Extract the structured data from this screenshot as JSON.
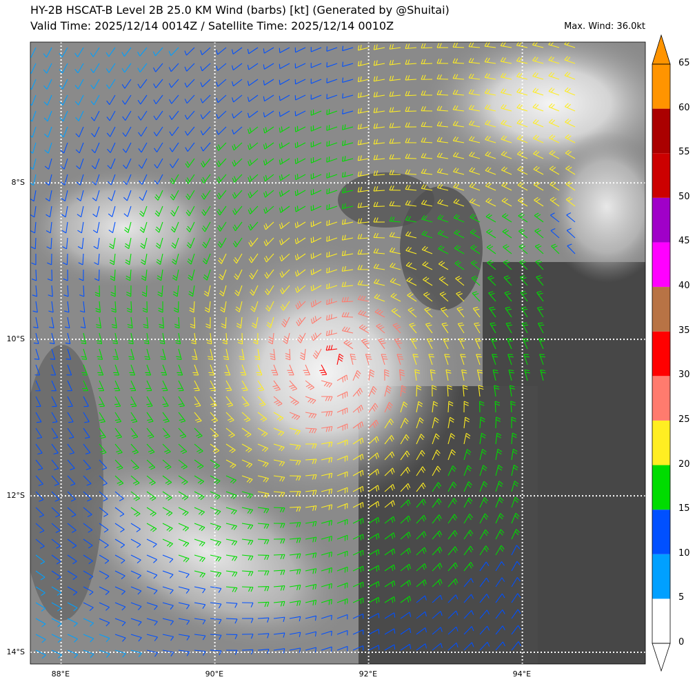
{
  "header": {
    "title_line1": "HY-2B HSCAT-B Level 2B 25.0 KM Wind (barbs) [kt] (Generated by @Shuitai)",
    "title_line2": "Valid Time: 2025/12/14 0014Z / Satellite Time: 2025/12/14 0010Z",
    "max_wind": "Max. Wind: 36.0kt"
  },
  "map": {
    "lon_range": [
      87.6,
      95.6
    ],
    "lat_range": [
      -14.15,
      -6.2
    ],
    "lon_ticks": [
      88,
      90,
      92,
      94
    ],
    "lon_labels": [
      "88°E",
      "90°E",
      "92°E",
      "94°E"
    ],
    "lat_ticks": [
      -8,
      -10,
      -12,
      -14
    ],
    "lat_labels": [
      "8°S",
      "10°S",
      "12°S",
      "14°S"
    ],
    "gridlines": "dotted white",
    "storm_center": {
      "lon": 91.55,
      "lat": -10.3
    },
    "background": "grayscale infrared satellite imagery"
  },
  "colorbar": {
    "levels": [
      0,
      5,
      10,
      15,
      20,
      25,
      30,
      35,
      40,
      45,
      50,
      55,
      60,
      65
    ],
    "labels": [
      "0",
      "5",
      "10",
      "15",
      "20",
      "25",
      "30",
      "35",
      "40",
      "45",
      "50",
      "55",
      "60",
      "65"
    ],
    "colors": [
      "#ffffff",
      "#00a0ff",
      "#0050ff",
      "#00dc00",
      "#ffee22",
      "#ff7b6e",
      "#ff0000",
      "#b87345",
      "#ff00ff",
      "#a000c8",
      "#cc0000",
      "#aa0000",
      "#ff9400"
    ],
    "extend": "both"
  }
}
